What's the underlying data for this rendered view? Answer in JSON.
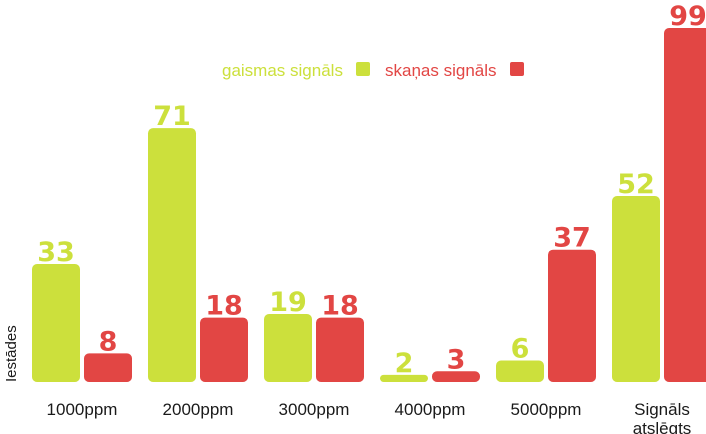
{
  "chart_data": {
    "type": "bar",
    "ylabel": "Iestādes",
    "categories": [
      "1000ppm",
      "2000ppm",
      "3000ppm",
      "4000ppm",
      "5000ppm",
      "Signāls atslēgts"
    ],
    "series": [
      {
        "name": "gaismas signāls",
        "color": "#cce03c",
        "values": [
          33,
          71,
          19,
          2,
          6,
          52
        ]
      },
      {
        "name": "skaņas signāls",
        "color": "#e24644",
        "values": [
          8,
          18,
          18,
          3,
          37,
          99
        ]
      }
    ],
    "ylim": [
      0,
      99
    ],
    "grid": false,
    "legend": "top-center"
  }
}
